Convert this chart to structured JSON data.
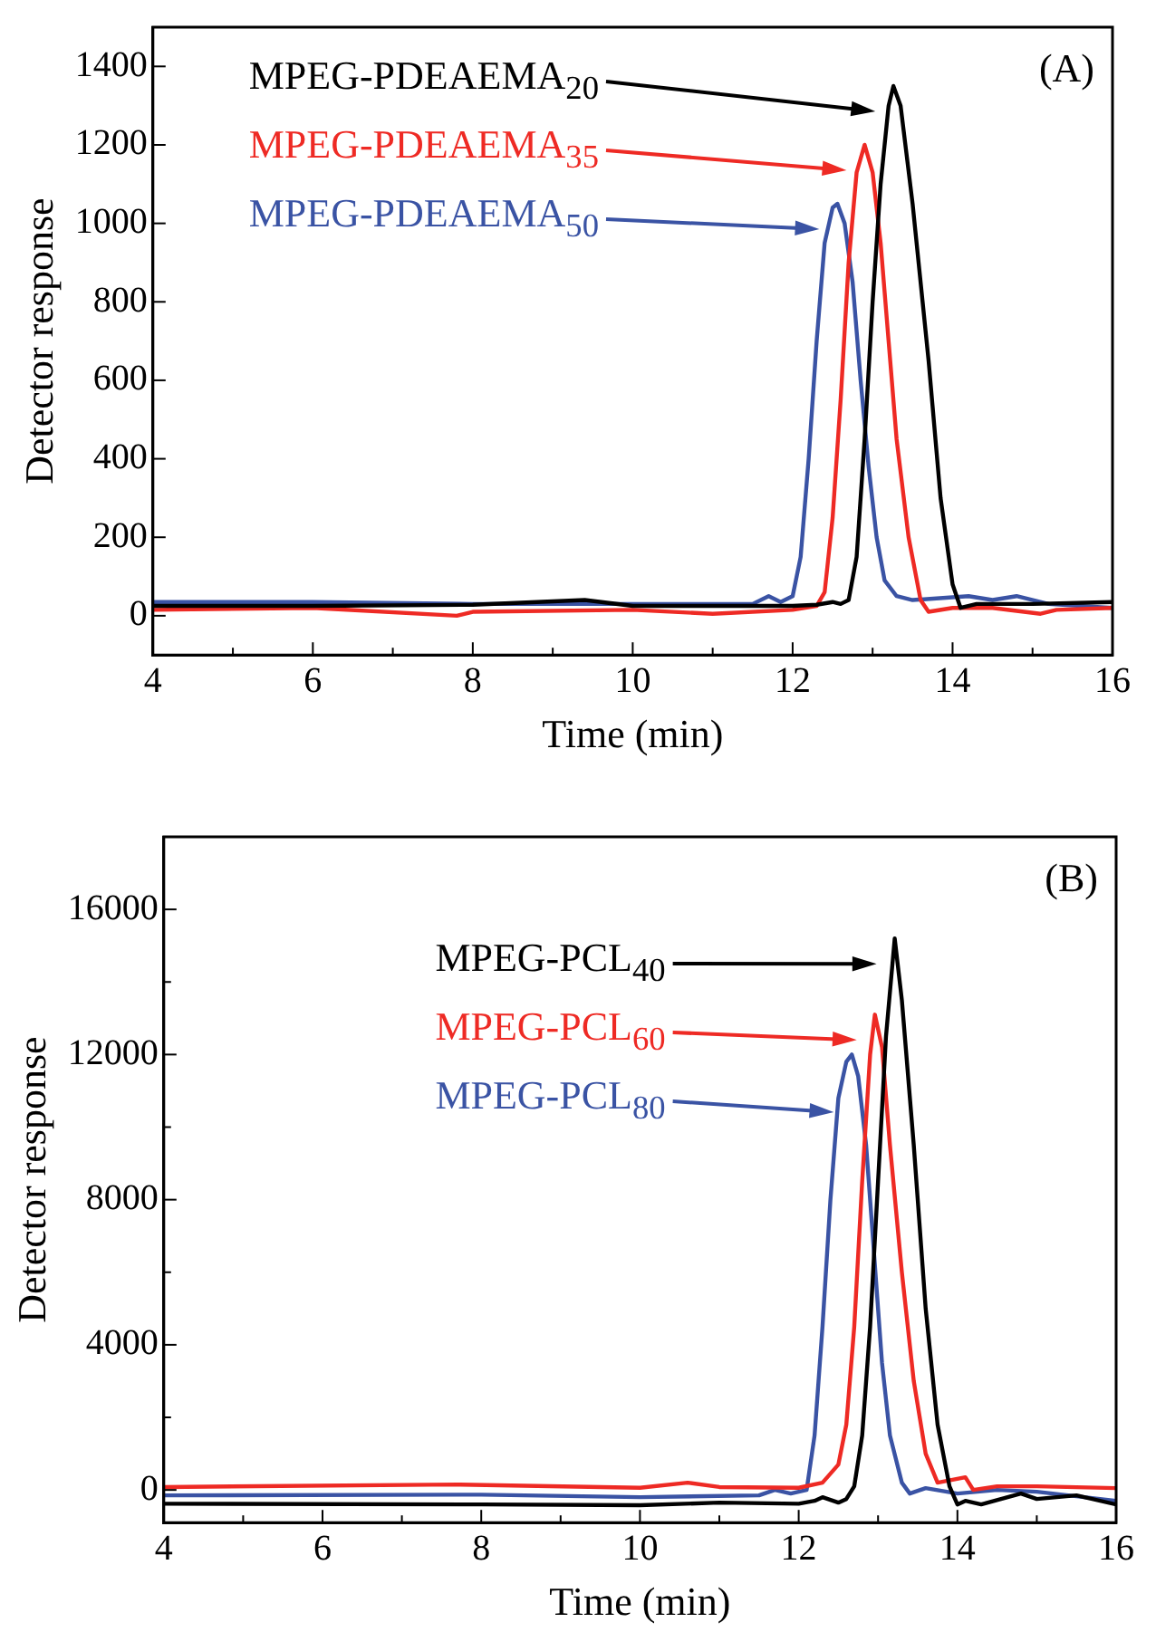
{
  "chart_data": [
    {
      "type": "line",
      "xlabel": "Time (min)",
      "ylabel": "Detector response",
      "annotations": [
        "(A)"
      ],
      "marker": "none",
      "line_style": "solid",
      "legend": "top left",
      "xlim": [
        4,
        16
      ],
      "xticks": [
        4,
        {
          "value": 5,
          "label": null
        },
        6,
        {
          "value": 7,
          "label": null
        },
        8,
        {
          "value": 9,
          "label": null
        },
        10,
        {
          "value": 11,
          "label": null
        },
        12,
        {
          "value": 13,
          "label": null
        },
        14,
        {
          "value": 15,
          "label": null
        },
        16
      ],
      "ylim": [
        -100,
        1500
      ],
      "yticks": [
        0,
        200,
        400,
        600,
        800,
        1000,
        1200,
        1400
      ],
      "series": [
        {
          "name": "MPEG-PDEAEMA$_{20}$",
          "color": "#000000",
          "x": [
            4,
            6,
            8,
            9.4,
            10,
            12,
            12.3,
            12.5,
            12.6,
            12.7,
            12.8,
            12.9,
            13.0,
            13.1,
            13.2,
            13.26,
            13.35,
            13.5,
            13.7,
            13.85,
            14.0,
            14.1,
            14.3,
            15,
            16
          ],
          "values": [
            25,
            25,
            28,
            40,
            25,
            25,
            28,
            35,
            30,
            40,
            150,
            450,
            800,
            1100,
            1300,
            1350,
            1300,
            1050,
            650,
            300,
            80,
            20,
            30,
            30,
            35
          ]
        },
        {
          "name": "MPEG-PDEAEMA$_{35}$",
          "color": "#ee2a24",
          "x": [
            4,
            6,
            7.8,
            8,
            10,
            11,
            12,
            12.3,
            12.4,
            12.5,
            12.6,
            12.7,
            12.8,
            12.9,
            13.0,
            13.1,
            13.2,
            13.3,
            13.45,
            13.6,
            13.7,
            14,
            14.5,
            15.1,
            15.3,
            16
          ],
          "values": [
            15,
            20,
            0,
            10,
            15,
            5,
            15,
            25,
            60,
            250,
            550,
            900,
            1130,
            1200,
            1130,
            950,
            700,
            450,
            200,
            40,
            10,
            20,
            20,
            5,
            15,
            20
          ]
        },
        {
          "name": "MPEG-PDEAEMA$_{50}$",
          "color": "#3a53a4",
          "x": [
            4,
            6,
            8,
            10,
            11.5,
            11.7,
            11.85,
            12.0,
            12.1,
            12.2,
            12.3,
            12.4,
            12.5,
            12.56,
            12.65,
            12.75,
            12.85,
            12.95,
            13.05,
            13.15,
            13.3,
            13.5,
            14.2,
            14.5,
            14.8,
            15.2,
            16
          ],
          "values": [
            35,
            35,
            30,
            30,
            30,
            50,
            35,
            50,
            150,
            400,
            700,
            950,
            1040,
            1050,
            1000,
            850,
            600,
            380,
            200,
            90,
            50,
            40,
            50,
            40,
            50,
            30,
            20
          ]
        }
      ]
    },
    {
      "type": "line",
      "xlabel": "Time (min)",
      "ylabel": "Detector response",
      "annotations": [
        "(B)"
      ],
      "marker": "none",
      "line_style": "solid",
      "legend": "top",
      "xlim": [
        4,
        16
      ],
      "xticks": [
        4,
        {
          "value": 5,
          "label": null
        },
        6,
        {
          "value": 7,
          "label": null
        },
        8,
        {
          "value": 9,
          "label": null
        },
        10,
        {
          "value": 11,
          "label": null
        },
        12,
        {
          "value": 13,
          "label": null
        },
        14,
        {
          "value": 15,
          "label": null
        },
        16
      ],
      "ylim": [
        -900,
        18000
      ],
      "yticks": [
        0,
        {
          "value": 2000,
          "label": null
        },
        4000,
        {
          "value": 6000,
          "label": null
        },
        8000,
        {
          "value": 10000,
          "label": null
        },
        12000,
        {
          "value": 14000,
          "label": null
        },
        16000
      ],
      "series": [
        {
          "name": "MPEG-PCL$_{40}$",
          "color": "#000000",
          "x": [
            4,
            8,
            10,
            11,
            12,
            12.2,
            12.3,
            12.5,
            12.6,
            12.7,
            12.8,
            12.9,
            13.0,
            13.1,
            13.21,
            13.3,
            13.45,
            13.6,
            13.75,
            13.9,
            14.0,
            14.1,
            14.3,
            14.8,
            15,
            15.5,
            16
          ],
          "values": [
            -380,
            -400,
            -420,
            -350,
            -380,
            -300,
            -200,
            -350,
            -250,
            100,
            1500,
            4500,
            8500,
            12500,
            15200,
            13500,
            9500,
            5000,
            1800,
            100,
            -400,
            -300,
            -400,
            -100,
            -250,
            -150,
            -400
          ]
        },
        {
          "name": "MPEG-PCL$_{60}$",
          "color": "#ee2a24",
          "x": [
            4,
            7.7,
            10,
            10.6,
            11,
            12,
            12.3,
            12.5,
            12.6,
            12.7,
            12.8,
            12.9,
            12.96,
            13.05,
            13.15,
            13.3,
            13.45,
            13.6,
            13.75,
            14.1,
            14.2,
            14.5,
            15,
            16
          ],
          "values": [
            80,
            150,
            60,
            200,
            80,
            60,
            200,
            700,
            1800,
            4500,
            8500,
            12000,
            13100,
            12200,
            9500,
            6000,
            3000,
            1000,
            200,
            350,
            0,
            100,
            100,
            50
          ]
        },
        {
          "name": "MPEG-PCL$_{80}$",
          "color": "#3a53a4",
          "x": [
            4,
            8,
            10,
            11.5,
            11.7,
            11.9,
            12.1,
            12.2,
            12.3,
            12.4,
            12.5,
            12.6,
            12.67,
            12.75,
            12.85,
            12.95,
            13.05,
            13.15,
            13.3,
            13.4,
            13.6,
            14,
            14.5,
            15,
            16
          ],
          "values": [
            -150,
            -130,
            -200,
            -150,
            0,
            -100,
            0,
            1500,
            4500,
            8000,
            10800,
            11800,
            12000,
            11400,
            9500,
            6500,
            3500,
            1500,
            200,
            -100,
            50,
            -100,
            0,
            -50,
            -300
          ]
        }
      ]
    }
  ]
}
